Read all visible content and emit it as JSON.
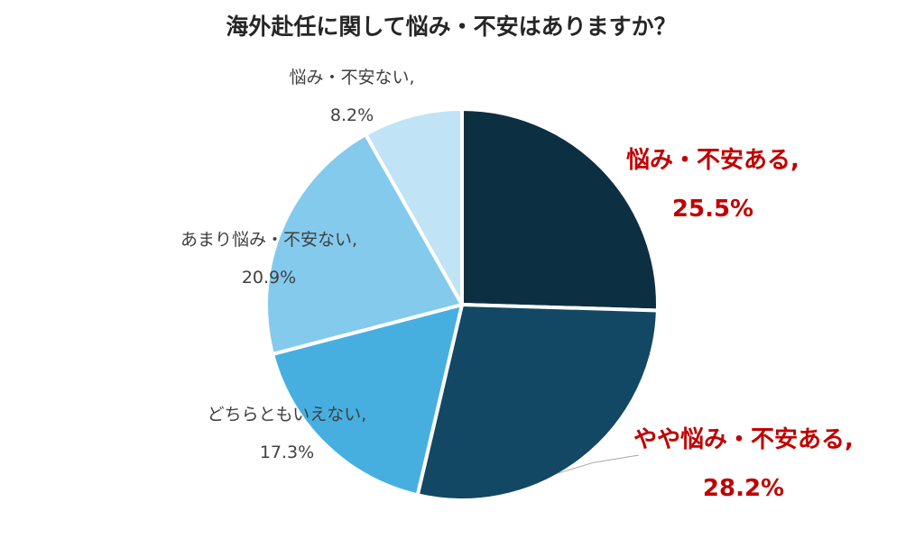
{
  "chart_data": {
    "type": "pie",
    "title": "海外赴任に関して悩み・不安はありますか？",
    "slices": [
      {
        "label": "悩み・不安ある,",
        "value": 25.5,
        "value_label": "25.5%",
        "color": "#0d2f42",
        "highlight": true
      },
      {
        "label": "やや悩み・不安ある,",
        "value": 28.2,
        "value_label": "28.2%",
        "color": "#124863",
        "highlight": true
      },
      {
        "label": "どちらともいえない,",
        "value": 17.3,
        "value_label": "17.3%",
        "color": "#47afe0",
        "highlight": false
      },
      {
        "label": "あまり悩み・不安ない,",
        "value": 20.9,
        "value_label": "20.9%",
        "color": "#84caec",
        "highlight": false
      },
      {
        "label": "悩み・不安ない,",
        "value": 8.2,
        "value_label": "8.2%",
        "color": "#c1e3f6",
        "highlight": false
      }
    ],
    "start": "12 o'clock",
    "direction": "clockwise",
    "legend": "none (labels beside slices)",
    "highlight_color": "#c00000"
  }
}
